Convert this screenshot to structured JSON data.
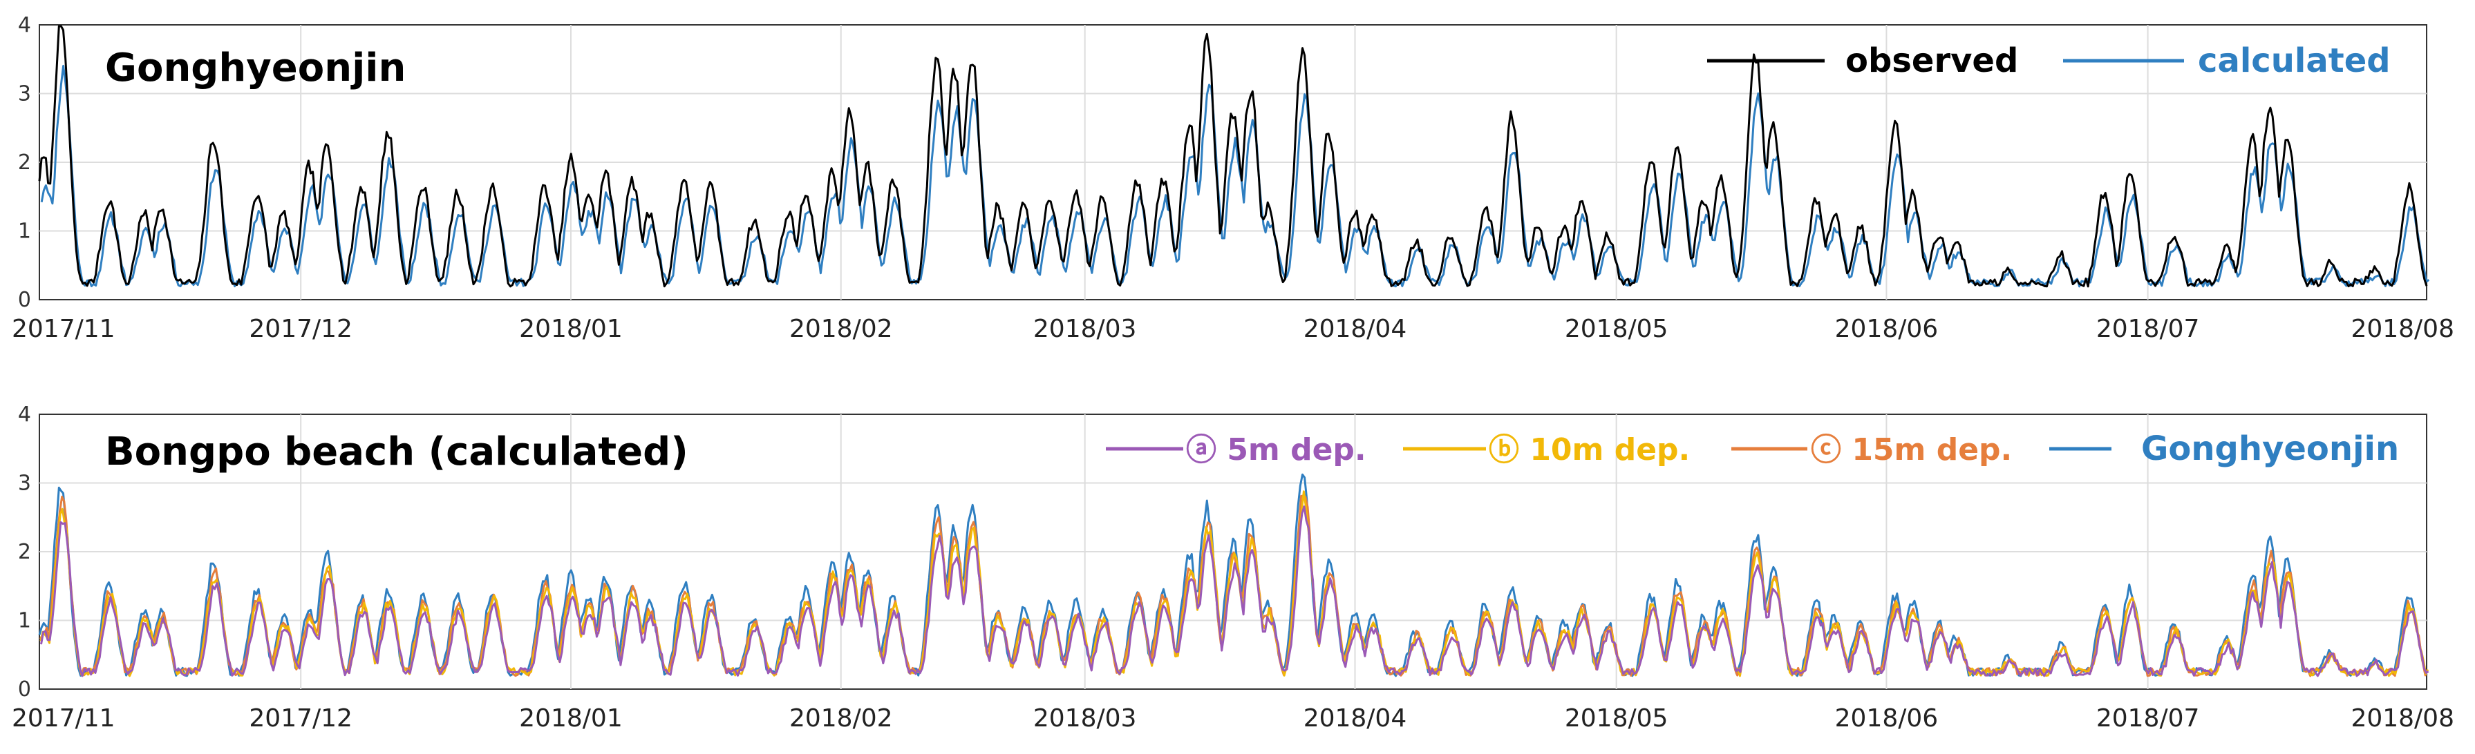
{
  "figure": {
    "x_tick_labels": [
      "2017/11",
      "2017/12",
      "2018/01",
      "2018/02",
      "2018/03",
      "2018/04",
      "2018/05",
      "2018/06",
      "2018/07",
      "2018/08"
    ]
  },
  "chart_data": [
    {
      "type": "line",
      "title": "Gonghyeonjin",
      "xlabel": "",
      "ylabel": "",
      "ylim": [
        0,
        4
      ],
      "y_ticks": [
        "0",
        "1",
        "2",
        "3",
        "4"
      ],
      "x_range_days": [
        0,
        274
      ],
      "grid": true,
      "legend_position": "top-right",
      "legend": [
        {
          "label": "observed",
          "color": "#000000"
        },
        {
          "label": "calculated",
          "color": "#2f7fc1"
        }
      ],
      "peaks": [
        [
          0.5,
          2.0
        ],
        [
          2.5,
          4.0
        ],
        [
          8,
          1.4
        ],
        [
          12,
          1.2
        ],
        [
          14,
          1.3
        ],
        [
          20,
          2.3
        ],
        [
          25,
          1.5
        ],
        [
          28,
          1.2
        ],
        [
          31,
          1.9
        ],
        [
          33,
          2.2
        ],
        [
          37,
          1.6
        ],
        [
          40,
          2.4
        ],
        [
          44,
          1.6
        ],
        [
          48,
          1.5
        ],
        [
          52,
          1.6
        ],
        [
          58,
          1.6
        ],
        [
          61,
          2.0
        ],
        [
          63,
          1.5
        ],
        [
          65,
          1.8
        ],
        [
          68,
          1.7
        ],
        [
          70,
          1.2
        ],
        [
          74,
          1.7
        ],
        [
          77,
          1.6
        ],
        [
          82,
          1.1
        ],
        [
          86,
          1.2
        ],
        [
          88,
          1.5
        ],
        [
          91,
          1.8
        ],
        [
          93,
          2.7
        ],
        [
          95,
          1.9
        ],
        [
          98,
          1.7
        ],
        [
          103,
          3.5
        ],
        [
          105,
          3.3
        ],
        [
          107,
          3.5
        ],
        [
          110,
          1.3
        ],
        [
          113,
          1.3
        ],
        [
          116,
          1.4
        ],
        [
          119,
          1.5
        ],
        [
          122,
          1.4
        ],
        [
          126,
          1.7
        ],
        [
          129,
          1.7
        ],
        [
          132,
          2.5
        ],
        [
          134,
          3.7
        ],
        [
          137,
          2.7
        ],
        [
          139,
          3.0
        ],
        [
          141,
          1.3
        ],
        [
          145,
          3.5
        ],
        [
          148,
          2.4
        ],
        [
          151,
          1.2
        ],
        [
          153,
          1.2
        ],
        [
          158,
          0.8
        ],
        [
          162,
          0.9
        ],
        [
          166,
          1.3
        ],
        [
          169,
          2.6
        ],
        [
          172,
          1.0
        ],
        [
          175,
          1.0
        ],
        [
          177,
          1.4
        ],
        [
          180,
          0.9
        ],
        [
          185,
          2.0
        ],
        [
          188,
          2.2
        ],
        [
          191,
          1.4
        ],
        [
          193,
          1.7
        ],
        [
          197,
          3.5
        ],
        [
          199,
          2.5
        ],
        [
          204,
          1.4
        ],
        [
          206,
          1.2
        ],
        [
          209,
          1.0
        ],
        [
          213,
          2.5
        ],
        [
          215,
          1.5
        ],
        [
          218,
          0.9
        ],
        [
          220,
          0.8
        ],
        [
          226,
          0.4
        ],
        [
          232,
          0.6
        ],
        [
          237,
          1.5
        ],
        [
          240,
          1.8
        ],
        [
          245,
          0.9
        ],
        [
          251,
          0.7
        ],
        [
          254,
          2.3
        ],
        [
          256,
          2.8
        ],
        [
          258,
          2.3
        ],
        [
          263,
          0.5
        ],
        [
          268,
          0.4
        ],
        [
          272,
          1.6
        ]
      ]
    },
    {
      "type": "line",
      "title": "Bongpo beach (calculated)",
      "xlabel": "",
      "ylabel": "",
      "ylim": [
        0,
        4
      ],
      "y_ticks": [
        "0",
        "1",
        "2",
        "3",
        "4"
      ],
      "x_range_days": [
        0,
        274
      ],
      "grid": true,
      "legend_position": "top-right",
      "legend": [
        {
          "label": "ⓐ 5m dep.",
          "color": "#9b59b6"
        },
        {
          "label": "ⓑ 10m dep.",
          "color": "#f2b807"
        },
        {
          "label": "ⓒ 15m dep.",
          "color": "#e67e3c"
        },
        {
          "label": "Gonghyeonjin",
          "color": "#2f7fc1"
        }
      ],
      "peaks": [
        [
          0.5,
          0.9
        ],
        [
          2.5,
          2.9
        ],
        [
          8,
          1.5
        ],
        [
          12,
          1.1
        ],
        [
          14,
          1.1
        ],
        [
          20,
          1.8
        ],
        [
          25,
          1.4
        ],
        [
          28,
          1.0
        ],
        [
          31,
          1.1
        ],
        [
          33,
          1.9
        ],
        [
          37,
          1.3
        ],
        [
          40,
          1.4
        ],
        [
          44,
          1.3
        ],
        [
          48,
          1.3
        ],
        [
          52,
          1.4
        ],
        [
          58,
          1.6
        ],
        [
          61,
          1.6
        ],
        [
          63,
          1.3
        ],
        [
          65,
          1.6
        ],
        [
          68,
          1.5
        ],
        [
          70,
          1.2
        ],
        [
          74,
          1.5
        ],
        [
          77,
          1.3
        ],
        [
          82,
          1.0
        ],
        [
          86,
          1.0
        ],
        [
          88,
          1.4
        ],
        [
          91,
          1.8
        ],
        [
          93,
          1.9
        ],
        [
          95,
          1.7
        ],
        [
          98,
          1.3
        ],
        [
          103,
          2.6
        ],
        [
          105,
          2.3
        ],
        [
          107,
          2.6
        ],
        [
          110,
          1.1
        ],
        [
          113,
          1.1
        ],
        [
          116,
          1.2
        ],
        [
          119,
          1.2
        ],
        [
          122,
          1.1
        ],
        [
          126,
          1.4
        ],
        [
          129,
          1.4
        ],
        [
          132,
          1.9
        ],
        [
          134,
          2.6
        ],
        [
          137,
          2.1
        ],
        [
          139,
          2.4
        ],
        [
          141,
          1.2
        ],
        [
          145,
          3.1
        ],
        [
          148,
          1.8
        ],
        [
          151,
          1.0
        ],
        [
          153,
          1.0
        ],
        [
          158,
          0.8
        ],
        [
          162,
          0.9
        ],
        [
          166,
          1.2
        ],
        [
          169,
          1.4
        ],
        [
          172,
          1.0
        ],
        [
          175,
          0.9
        ],
        [
          177,
          1.2
        ],
        [
          180,
          0.9
        ],
        [
          185,
          1.3
        ],
        [
          188,
          1.5
        ],
        [
          191,
          1.0
        ],
        [
          193,
          1.2
        ],
        [
          197,
          2.2
        ],
        [
          199,
          1.7
        ],
        [
          204,
          1.2
        ],
        [
          206,
          1.0
        ],
        [
          209,
          0.9
        ],
        [
          213,
          1.3
        ],
        [
          215,
          1.2
        ],
        [
          218,
          0.9
        ],
        [
          220,
          0.7
        ],
        [
          226,
          0.4
        ],
        [
          232,
          0.6
        ],
        [
          237,
          1.2
        ],
        [
          240,
          1.4
        ],
        [
          245,
          0.9
        ],
        [
          251,
          0.7
        ],
        [
          254,
          1.6
        ],
        [
          256,
          2.1
        ],
        [
          258,
          1.8
        ],
        [
          263,
          0.5
        ],
        [
          268,
          0.4
        ],
        [
          272,
          1.3
        ]
      ]
    }
  ]
}
